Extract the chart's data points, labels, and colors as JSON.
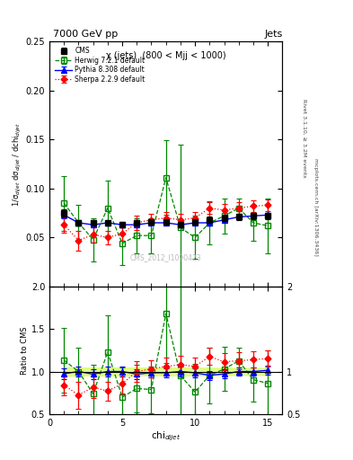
{
  "title_top": "7000 GeV pp",
  "title_right": "Jets",
  "subtitle": "χ (jets)  (800 < Mjj < 1000)",
  "watermark": "CMS_2012_I1090423",
  "ylabel_main": "1/σ$_{dijet}$ dσ$_{dijet}$ / dchi$_{dijet}$",
  "ylabel_ratio": "Ratio to CMS",
  "xlabel": "chi$_{dijet}$",
  "right_label1": "Rivet 3.1.10, ≥ 3.2M events",
  "right_label2": "mcplots.cern.ch [arXiv:1306.3436]",
  "xlim": [
    0,
    16
  ],
  "ylim_main": [
    0.0,
    0.25
  ],
  "ylim_ratio": [
    0.5,
    2.0
  ],
  "yticks_main": [
    0.05,
    0.1,
    0.15,
    0.2,
    0.25
  ],
  "yticks_ratio": [
    0.5,
    1.0,
    1.5,
    2.0
  ],
  "ytick_labels_ratio_right": [
    "0.5",
    "1",
    "2"
  ],
  "xticks": [
    0,
    5,
    10,
    15
  ],
  "cms_x": [
    1,
    2,
    3,
    4,
    5,
    6,
    7,
    8,
    9,
    10,
    11,
    12,
    13,
    14,
    15
  ],
  "cms_y": [
    0.075,
    0.065,
    0.065,
    0.065,
    0.063,
    0.065,
    0.066,
    0.066,
    0.063,
    0.066,
    0.068,
    0.07,
    0.071,
    0.072,
    0.072
  ],
  "cms_yerr": [
    0.004,
    0.003,
    0.003,
    0.003,
    0.003,
    0.003,
    0.003,
    0.003,
    0.003,
    0.003,
    0.003,
    0.003,
    0.003,
    0.003,
    0.003
  ],
  "herwig_x": [
    1,
    2,
    3,
    4,
    5,
    6,
    7,
    8,
    9,
    10,
    11,
    12,
    13,
    14,
    15
  ],
  "herwig_y": [
    0.085,
    0.065,
    0.048,
    0.08,
    0.044,
    0.052,
    0.052,
    0.111,
    0.06,
    0.05,
    0.065,
    0.072,
    0.08,
    0.065,
    0.062
  ],
  "herwig_yerr": [
    0.028,
    0.018,
    0.022,
    0.028,
    0.022,
    0.018,
    0.018,
    0.038,
    0.085,
    0.022,
    0.022,
    0.018,
    0.01,
    0.018,
    0.028
  ],
  "pythia_x": [
    1,
    2,
    3,
    4,
    5,
    6,
    7,
    8,
    9,
    10,
    11,
    12,
    13,
    14,
    15
  ],
  "pythia_y": [
    0.073,
    0.065,
    0.063,
    0.065,
    0.063,
    0.063,
    0.065,
    0.065,
    0.063,
    0.065,
    0.065,
    0.068,
    0.071,
    0.072,
    0.073
  ],
  "pythia_yerr": [
    0.003,
    0.002,
    0.002,
    0.002,
    0.002,
    0.002,
    0.002,
    0.002,
    0.002,
    0.002,
    0.002,
    0.002,
    0.002,
    0.002,
    0.002
  ],
  "sherpa_x": [
    1,
    2,
    3,
    4,
    5,
    6,
    7,
    8,
    9,
    10,
    11,
    12,
    13,
    14,
    15
  ],
  "sherpa_y": [
    0.063,
    0.047,
    0.053,
    0.05,
    0.054,
    0.065,
    0.068,
    0.07,
    0.068,
    0.07,
    0.08,
    0.078,
    0.08,
    0.082,
    0.083
  ],
  "sherpa_yerr": [
    0.008,
    0.01,
    0.008,
    0.007,
    0.007,
    0.007,
    0.006,
    0.006,
    0.006,
    0.006,
    0.006,
    0.006,
    0.006,
    0.006,
    0.006
  ],
  "cms_color": "black",
  "herwig_color": "#008800",
  "pythia_color": "blue",
  "sherpa_color": "red",
  "ratio_band_color": "#ccff44",
  "ratio_band_alpha": 0.6
}
